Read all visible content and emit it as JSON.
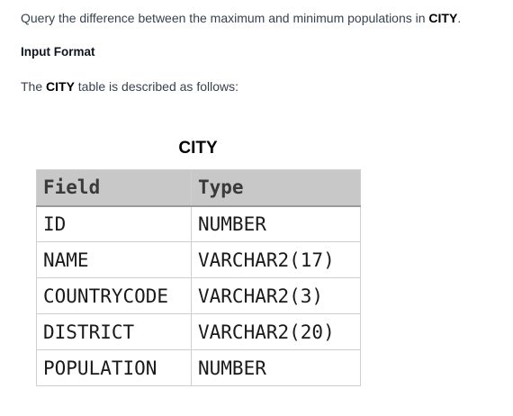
{
  "problem": {
    "prefix": "Query the difference between the maximum and minimum populations in ",
    "table_name": "CITY",
    "suffix": "."
  },
  "input_format": {
    "heading": "Input Format",
    "desc_prefix": "The ",
    "desc_table": "CITY",
    "desc_suffix": " table is described as follows:"
  },
  "table": {
    "title": "CITY",
    "headers": [
      "Field",
      "Type"
    ],
    "rows": [
      [
        "ID",
        "NUMBER"
      ],
      [
        "NAME",
        "VARCHAR2(17)"
      ],
      [
        "COUNTRYCODE",
        "VARCHAR2(3)"
      ],
      [
        "DISTRICT",
        "VARCHAR2(20)"
      ],
      [
        "POPULATION",
        "NUMBER"
      ]
    ]
  }
}
